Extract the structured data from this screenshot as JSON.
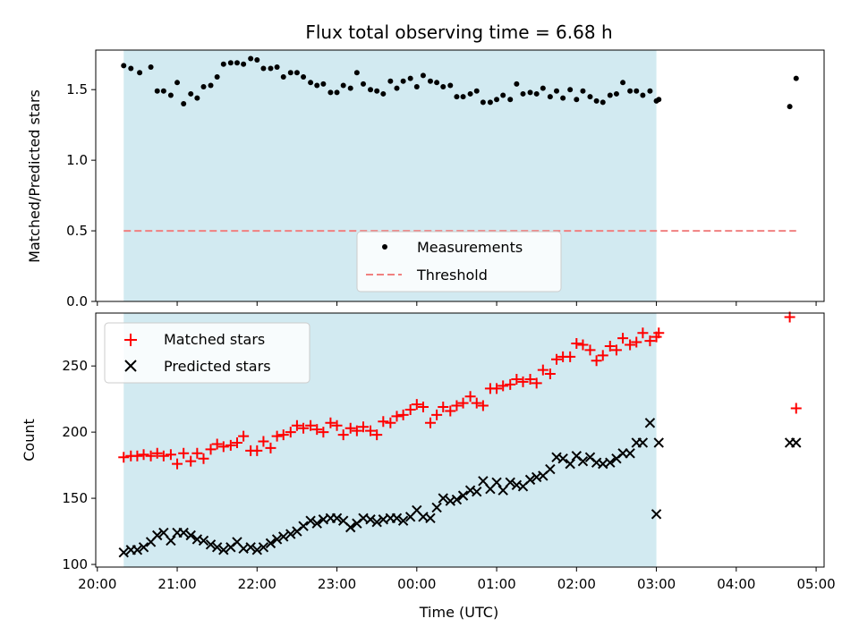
{
  "chart_data": {
    "title": "Flux total observing time = 6.68 h",
    "xlabel": "Time (UTC)",
    "x_ticks": [
      "20:00",
      "21:00",
      "22:00",
      "23:00",
      "00:00",
      "01:00",
      "02:00",
      "03:00",
      "04:00",
      "05:00"
    ],
    "x_range_hours": [
      19.98,
      29.1
    ],
    "shaded_interval_hours": [
      20.33,
      27.0
    ],
    "shade_color": "#add8e6",
    "panels": [
      {
        "type": "scatter",
        "ylabel": "Matched/Predicted stars",
        "ylim": [
          0,
          1.78
        ],
        "y_ticks": [
          "0.0",
          "0.5",
          "1.0",
          "1.5"
        ],
        "y_tick_values": [
          0,
          0.5,
          1.0,
          1.5
        ],
        "legend_position": "lower-center",
        "threshold": {
          "name": "Threshold",
          "y": 0.5,
          "x_range": [
            20.33,
            28.75
          ],
          "color": "#f08080"
        },
        "series": [
          {
            "name": "Measurements",
            "color": "#000000",
            "x": [
              20.33,
              20.42,
              20.53,
              20.67,
              20.75,
              20.83,
              20.92,
              21.0,
              21.08,
              21.17,
              21.25,
              21.33,
              21.42,
              21.5,
              21.58,
              21.67,
              21.75,
              21.83,
              21.92,
              22.0,
              22.08,
              22.17,
              22.25,
              22.33,
              22.42,
              22.5,
              22.58,
              22.67,
              22.75,
              22.83,
              22.92,
              23.0,
              23.08,
              23.17,
              23.25,
              23.33,
              23.42,
              23.5,
              23.58,
              23.67,
              23.75,
              23.83,
              23.92,
              24.0,
              24.08,
              24.17,
              24.25,
              24.33,
              24.42,
              24.5,
              24.58,
              24.67,
              24.75,
              24.83,
              24.92,
              25.0,
              25.08,
              25.17,
              25.25,
              25.33,
              25.42,
              25.5,
              25.58,
              25.67,
              25.75,
              25.83,
              25.92,
              26.0,
              26.08,
              26.17,
              26.25,
              26.33,
              26.42,
              26.5,
              26.58,
              26.67,
              26.75,
              26.83,
              26.92,
              27.0,
              27.03,
              28.67,
              28.75
            ],
            "y": [
              1.67,
              1.65,
              1.62,
              1.66,
              1.49,
              1.49,
              1.46,
              1.55,
              1.4,
              1.47,
              1.44,
              1.52,
              1.53,
              1.59,
              1.68,
              1.69,
              1.69,
              1.68,
              1.72,
              1.71,
              1.65,
              1.65,
              1.66,
              1.59,
              1.62,
              1.62,
              1.59,
              1.55,
              1.53,
              1.54,
              1.48,
              1.48,
              1.53,
              1.51,
              1.62,
              1.54,
              1.5,
              1.49,
              1.47,
              1.56,
              1.51,
              1.56,
              1.58,
              1.52,
              1.6,
              1.56,
              1.55,
              1.52,
              1.53,
              1.45,
              1.45,
              1.47,
              1.49,
              1.41,
              1.41,
              1.43,
              1.46,
              1.43,
              1.54,
              1.47,
              1.48,
              1.47,
              1.51,
              1.45,
              1.49,
              1.44,
              1.5,
              1.43,
              1.49,
              1.45,
              1.42,
              1.41,
              1.46,
              1.47,
              1.55,
              1.49,
              1.49,
              1.46,
              1.49,
              1.42,
              1.43,
              1.38,
              1.58
            ]
          }
        ]
      },
      {
        "type": "scatter",
        "ylabel": "Count",
        "ylim": [
          98,
          290
        ],
        "y_ticks": [
          "100",
          "150",
          "200",
          "250"
        ],
        "y_tick_values": [
          100,
          150,
          200,
          250
        ],
        "legend_position": "upper-left",
        "series": [
          {
            "name": "Matched stars",
            "color": "#ff0000",
            "marker": "plus",
            "x": [
              20.33,
              20.42,
              20.5,
              20.58,
              20.67,
              20.75,
              20.83,
              20.92,
              21.0,
              21.08,
              21.17,
              21.25,
              21.33,
              21.42,
              21.5,
              21.58,
              21.67,
              21.75,
              21.83,
              21.92,
              22.0,
              22.08,
              22.17,
              22.25,
              22.33,
              22.42,
              22.5,
              22.58,
              22.67,
              22.75,
              22.83,
              22.92,
              23.0,
              23.08,
              23.17,
              23.25,
              23.33,
              23.42,
              23.5,
              23.58,
              23.67,
              23.75,
              23.83,
              23.92,
              24.0,
              24.08,
              24.17,
              24.25,
              24.33,
              24.42,
              24.5,
              24.58,
              24.67,
              24.75,
              24.83,
              24.92,
              25.0,
              25.08,
              25.17,
              25.25,
              25.33,
              25.42,
              25.5,
              25.58,
              25.67,
              25.75,
              25.83,
              25.92,
              26.0,
              26.08,
              26.17,
              26.25,
              26.33,
              26.42,
              26.5,
              26.58,
              26.67,
              26.75,
              26.83,
              26.92,
              27.0,
              27.03,
              28.67,
              28.75
            ],
            "y": [
              181,
              182,
              182,
              183,
              182,
              184,
              182,
              183,
              176,
              184,
              178,
              184,
              180,
              187,
              191,
              189,
              190,
              192,
              197,
              186,
              186,
              193,
              188,
              197,
              198,
              200,
              205,
              203,
              205,
              202,
              200,
              207,
              205,
              198,
              203,
              201,
              204,
              201,
              198,
              208,
              207,
              212,
              213,
              217,
              221,
              219,
              207,
              213,
              219,
              216,
              220,
              222,
              227,
              222,
              220,
              233,
              233,
              235,
              236,
              240,
              238,
              240,
              237,
              247,
              244,
              255,
              257,
              257,
              267,
              266,
              262,
              254,
              258,
              265,
              262,
              271,
              266,
              268,
              275,
              269,
              272,
              275,
              287,
              218
            ]
          },
          {
            "name": "Predicted stars",
            "color": "#000000",
            "marker": "x",
            "x": [
              20.33,
              20.42,
              20.5,
              20.58,
              20.67,
              20.75,
              20.83,
              20.92,
              21.0,
              21.08,
              21.17,
              21.25,
              21.33,
              21.42,
              21.5,
              21.58,
              21.67,
              21.75,
              21.83,
              21.92,
              22.0,
              22.08,
              22.17,
              22.25,
              22.33,
              22.42,
              22.5,
              22.58,
              22.67,
              22.75,
              22.83,
              22.92,
              23.0,
              23.08,
              23.17,
              23.25,
              23.33,
              23.42,
              23.5,
              23.58,
              23.67,
              23.75,
              23.83,
              23.92,
              24.0,
              24.08,
              24.17,
              24.25,
              24.33,
              24.42,
              24.5,
              24.58,
              24.67,
              24.75,
              24.83,
              24.92,
              25.0,
              25.08,
              25.17,
              25.25,
              25.33,
              25.42,
              25.5,
              25.58,
              25.67,
              25.75,
              25.83,
              25.92,
              26.0,
              26.08,
              26.17,
              26.25,
              26.33,
              26.42,
              26.5,
              26.58,
              26.67,
              26.75,
              26.83,
              26.92,
              27.0,
              27.03,
              28.67,
              28.75
            ],
            "y": [
              109,
              111,
              111,
              113,
              117,
              122,
              124,
              118,
              124,
              124,
              122,
              119,
              118,
              115,
              113,
              111,
              113,
              117,
              112,
              113,
              111,
              113,
              116,
              119,
              121,
              123,
              125,
              129,
              133,
              131,
              134,
              135,
              135,
              133,
              128,
              131,
              135,
              134,
              132,
              134,
              135,
              135,
              133,
              136,
              141,
              136,
              135,
              143,
              150,
              148,
              149,
              152,
              156,
              155,
              163,
              157,
              162,
              156,
              162,
              160,
              159,
              164,
              166,
              167,
              172,
              181,
              180,
              176,
              182,
              178,
              181,
              177,
              176,
              177,
              180,
              184,
              184,
              192,
              192,
              207,
              138,
              192,
              192,
              192
            ]
          }
        ]
      }
    ]
  }
}
